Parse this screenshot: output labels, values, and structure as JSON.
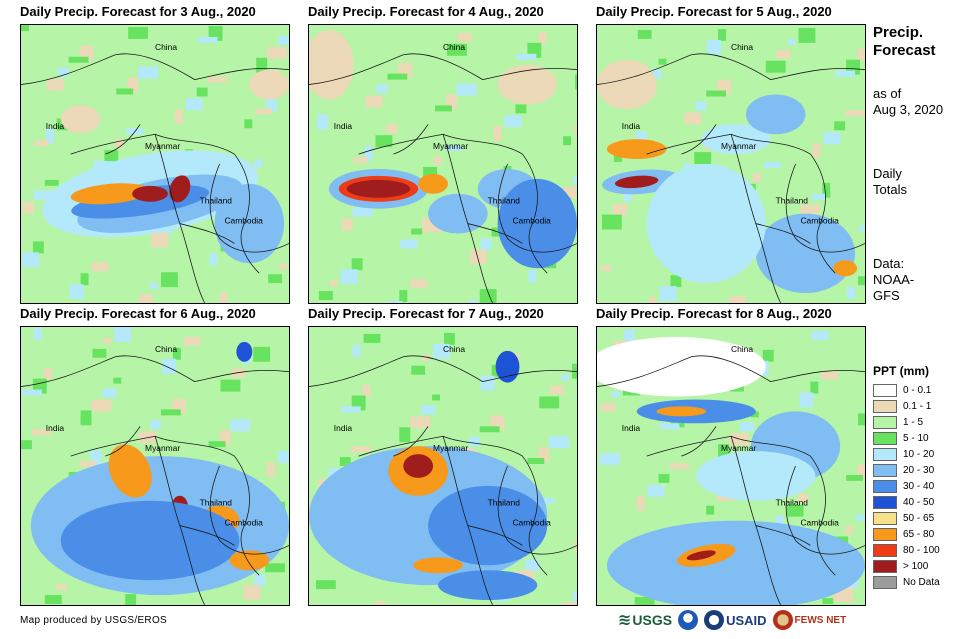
{
  "panels": [
    {
      "title": "Daily Precip. Forecast for 3 Aug., 2020",
      "labels": {
        "china": "China",
        "india": "India",
        "myanmar": "Myanmar",
        "thailand": "Thailand",
        "cambodia": "Cambodia"
      }
    },
    {
      "title": "Daily Precip. Forecast for 4 Aug., 2020",
      "labels": {
        "china": "China",
        "india": "India",
        "myanmar": "Myanmar",
        "thailand": "Thailand",
        "cambodia": "Cambodia"
      }
    },
    {
      "title": "Daily Precip. Forecast for 5 Aug., 2020",
      "labels": {
        "china": "China",
        "india": "India",
        "myanmar": "Myanmar",
        "thailand": "Thailand",
        "cambodia": "Cambodia"
      }
    },
    {
      "title": "Daily Precip. Forecast for 6 Aug., 2020",
      "labels": {
        "china": "China",
        "india": "India",
        "myanmar": "Myanmar",
        "thailand": "Thailand",
        "cambodia": "Cambodia"
      }
    },
    {
      "title": "Daily Precip. Forecast for 7 Aug., 2020",
      "labels": {
        "china": "China",
        "india": "India",
        "myanmar": "Myanmar",
        "thailand": "Thailand",
        "cambodia": "Cambodia"
      }
    },
    {
      "title": "Daily Precip. Forecast for 8 Aug., 2020",
      "labels": {
        "china": "China",
        "india": "India",
        "myanmar": "Myanmar",
        "thailand": "Thailand",
        "cambodia": "Cambodia"
      }
    }
  ],
  "side": {
    "title_line1": "Precip.",
    "title_line2": "Forecast",
    "asof_line1": "as of",
    "asof_line2": "Aug 3, 2020",
    "daily_line1": "Daily",
    "daily_line2": "Totals",
    "data_line1": "Data:",
    "data_line2": "NOAA-",
    "data_line3": "GFS"
  },
  "legend": {
    "title": "PPT (mm)",
    "items": [
      {
        "label": "0 - 0.1",
        "color": "#ffffff"
      },
      {
        "label": "0.1 - 1",
        "color": "#ecd9b8"
      },
      {
        "label": "1 - 5",
        "color": "#b6f5a7"
      },
      {
        "label": "5 - 10",
        "color": "#67e35f"
      },
      {
        "label": "10 - 20",
        "color": "#b3e9fb"
      },
      {
        "label": "20 - 30",
        "color": "#7fbdf2"
      },
      {
        "label": "30 - 40",
        "color": "#4a8ee8"
      },
      {
        "label": "40 - 50",
        "color": "#1f53d6"
      },
      {
        "label": "50 - 65",
        "color": "#f7e08a"
      },
      {
        "label": "65 - 80",
        "color": "#f79a1b"
      },
      {
        "label": "80 - 100",
        "color": "#ef3b16"
      },
      {
        "label": "> 100",
        "color": "#a01d1d"
      },
      {
        "label": "No Data",
        "color": "#9c9c9c"
      }
    ]
  },
  "credit": "Map produced by USGS/EROS",
  "logos": {
    "usgs": "USGS",
    "usaid": "USAID",
    "fews": "FEWS NET"
  }
}
